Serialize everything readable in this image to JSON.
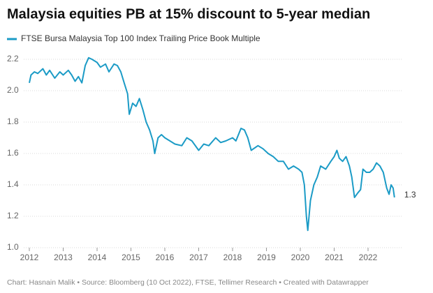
{
  "chart_data": {
    "type": "line",
    "title": "Malaysia equities PB at 15% discount to 5-year median",
    "footer": "Chart: Hasnain Malik • Source: Bloomberg (10 Oct 2022), FTSE, Tellimer Research • Created with Datawrapper",
    "x": [
      2012.0,
      2012.05,
      2012.15,
      2012.25,
      2012.4,
      2012.5,
      2012.6,
      2012.75,
      2012.9,
      2013.0,
      2013.15,
      2013.25,
      2013.35,
      2013.45,
      2013.55,
      2013.65,
      2013.75,
      2013.85,
      2014.0,
      2014.1,
      2014.25,
      2014.35,
      2014.5,
      2014.6,
      2014.7,
      2014.8,
      2014.9,
      2014.95,
      2015.05,
      2015.15,
      2015.25,
      2015.35,
      2015.45,
      2015.55,
      2015.65,
      2015.7,
      2015.8,
      2015.9,
      2016.0,
      2016.15,
      2016.3,
      2016.5,
      2016.65,
      2016.8,
      2017.0,
      2017.15,
      2017.3,
      2017.5,
      2017.65,
      2017.8,
      2018.0,
      2018.1,
      2018.25,
      2018.35,
      2018.45,
      2018.55,
      2018.75,
      2018.9,
      2019.05,
      2019.2,
      2019.35,
      2019.5,
      2019.65,
      2019.8,
      2019.95,
      2020.05,
      2020.12,
      2020.18,
      2020.22,
      2020.3,
      2020.4,
      2020.5,
      2020.6,
      2020.75,
      2020.9,
      2021.0,
      2021.08,
      2021.15,
      2021.25,
      2021.35,
      2021.45,
      2021.52,
      2021.6,
      2021.7,
      2021.78,
      2021.85,
      2021.95,
      2022.05,
      2022.15,
      2022.25,
      2022.35,
      2022.45,
      2022.55,
      2022.62,
      2022.68,
      2022.74,
      2022.78
    ],
    "series": [
      {
        "name": "FTSE Bursa Malaysia Top 100 Index Trailing Price Book Multiple",
        "color": "#1b9bc6",
        "values": [
          2.05,
          2.1,
          2.12,
          2.11,
          2.14,
          2.1,
          2.13,
          2.08,
          2.12,
          2.1,
          2.13,
          2.1,
          2.06,
          2.09,
          2.05,
          2.16,
          2.21,
          2.2,
          2.18,
          2.15,
          2.17,
          2.12,
          2.17,
          2.16,
          2.12,
          2.05,
          1.98,
          1.85,
          1.92,
          1.9,
          1.95,
          1.88,
          1.8,
          1.75,
          1.68,
          1.6,
          1.7,
          1.72,
          1.7,
          1.68,
          1.66,
          1.65,
          1.7,
          1.68,
          1.62,
          1.66,
          1.65,
          1.7,
          1.67,
          1.68,
          1.7,
          1.68,
          1.76,
          1.75,
          1.7,
          1.62,
          1.65,
          1.63,
          1.6,
          1.58,
          1.55,
          1.55,
          1.5,
          1.52,
          1.5,
          1.48,
          1.4,
          1.2,
          1.11,
          1.3,
          1.4,
          1.45,
          1.52,
          1.5,
          1.55,
          1.58,
          1.62,
          1.57,
          1.55,
          1.58,
          1.52,
          1.45,
          1.32,
          1.35,
          1.37,
          1.5,
          1.48,
          1.48,
          1.5,
          1.54,
          1.52,
          1.48,
          1.38,
          1.34,
          1.4,
          1.38,
          1.32
        ],
        "value_labels": [
          null,
          null,
          null,
          null,
          null,
          null,
          null,
          null,
          null,
          null,
          null,
          null,
          null,
          null,
          null,
          null,
          null,
          null,
          null,
          null,
          null,
          null,
          null,
          null,
          null,
          null,
          null,
          null,
          null,
          null,
          null,
          null,
          null,
          null,
          null,
          null,
          null,
          null,
          null,
          null,
          null,
          null,
          null,
          null,
          null,
          null,
          null,
          null,
          null,
          null,
          null,
          null,
          null,
          null,
          null,
          null,
          null,
          null,
          null,
          null,
          null,
          null,
          null,
          null,
          null,
          null,
          null,
          null,
          null,
          null,
          null,
          null,
          null,
          null,
          null,
          null,
          null,
          null,
          null,
          null,
          null,
          null,
          null,
          null,
          null,
          null,
          null,
          null,
          null,
          null,
          null,
          null,
          null,
          null,
          null,
          null,
          "1.3"
        ]
      }
    ],
    "xlim": [
      2012,
      2023
    ],
    "xticks": [
      2012,
      2013,
      2014,
      2015,
      2016,
      2017,
      2018,
      2019,
      2020,
      2021,
      2022
    ],
    "ylim": [
      1.0,
      2.2
    ],
    "yticks": [
      {
        "value": 1.0,
        "label": "1.0"
      },
      1.2,
      1.4,
      1.6,
      1.8,
      {
        "value": 2.0,
        "label": "2.0"
      },
      2.2
    ],
    "grid": true
  }
}
